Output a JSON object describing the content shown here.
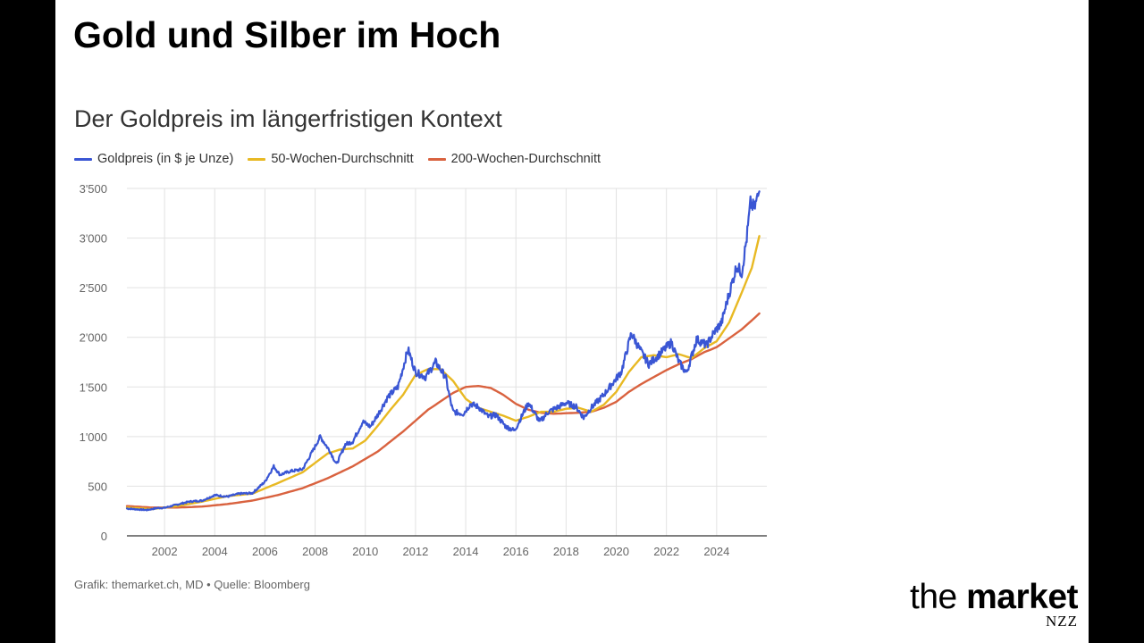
{
  "headline": "Gold und Silber im Hoch",
  "footer": {
    "source": "Grafik: themarket.ch, MD • Quelle: Bloomberg",
    "logo_word1": "the",
    "logo_word2": "market",
    "logo_sub": "NZZ"
  },
  "colors": {
    "gold_price": "#3a56d4",
    "ma50": "#e8b923",
    "ma200": "#d9623f",
    "grid": "#e2e2e2",
    "axis": "#333333"
  },
  "chart_data": {
    "type": "line",
    "title": "Der Goldpreis im längerfristigen Kontext",
    "xlabel": "",
    "ylabel": "",
    "xlim": [
      2000.5,
      2026.0
    ],
    "ylim": [
      0,
      3500
    ],
    "x_ticks": [
      2002,
      2004,
      2006,
      2008,
      2010,
      2012,
      2014,
      2016,
      2018,
      2020,
      2022,
      2024
    ],
    "x_tick_labels": [
      "2002",
      "2004",
      "2006",
      "2008",
      "2010",
      "2012",
      "2014",
      "2016",
      "2018",
      "2020",
      "2022",
      "2024"
    ],
    "y_ticks": [
      0,
      500,
      1000,
      1500,
      2000,
      2500,
      3000,
      3500
    ],
    "y_tick_labels": [
      "0",
      "500",
      "1'000",
      "1'500",
      "2'000",
      "2'500",
      "3'000",
      "3'500"
    ],
    "grid": true,
    "legend": "top-left",
    "series": [
      {
        "name": "Goldpreis (in $ je Unze)",
        "color": "#3a56d4",
        "points": [
          [
            2000.5,
            275
          ],
          [
            2001.0,
            265
          ],
          [
            2001.3,
            260
          ],
          [
            2001.7,
            280
          ],
          [
            2002.0,
            282
          ],
          [
            2002.5,
            315
          ],
          [
            2003.0,
            345
          ],
          [
            2003.5,
            355
          ],
          [
            2004.0,
            410
          ],
          [
            2004.5,
            395
          ],
          [
            2005.0,
            425
          ],
          [
            2005.5,
            430
          ],
          [
            2006.0,
            545
          ],
          [
            2006.35,
            700
          ],
          [
            2006.6,
            615
          ],
          [
            2007.0,
            650
          ],
          [
            2007.5,
            670
          ],
          [
            2008.0,
            900
          ],
          [
            2008.2,
            1000
          ],
          [
            2008.6,
            850
          ],
          [
            2008.85,
            720
          ],
          [
            2009.2,
            920
          ],
          [
            2009.5,
            950
          ],
          [
            2009.9,
            1150
          ],
          [
            2010.2,
            1100
          ],
          [
            2010.5,
            1220
          ],
          [
            2010.9,
            1400
          ],
          [
            2011.3,
            1500
          ],
          [
            2011.7,
            1880
          ],
          [
            2012.0,
            1650
          ],
          [
            2012.4,
            1600
          ],
          [
            2012.8,
            1750
          ],
          [
            2013.2,
            1600
          ],
          [
            2013.4,
            1350
          ],
          [
            2013.5,
            1250
          ],
          [
            2013.9,
            1230
          ],
          [
            2014.2,
            1330
          ],
          [
            2014.5,
            1300
          ],
          [
            2014.9,
            1200
          ],
          [
            2015.2,
            1220
          ],
          [
            2015.6,
            1100
          ],
          [
            2015.95,
            1060
          ],
          [
            2016.5,
            1340
          ],
          [
            2016.95,
            1150
          ],
          [
            2017.3,
            1250
          ],
          [
            2017.7,
            1300
          ],
          [
            2018.0,
            1340
          ],
          [
            2018.4,
            1300
          ],
          [
            2018.7,
            1190
          ],
          [
            2019.0,
            1290
          ],
          [
            2019.5,
            1420
          ],
          [
            2020.2,
            1650
          ],
          [
            2020.6,
            2040
          ],
          [
            2021.0,
            1850
          ],
          [
            2021.3,
            1730
          ],
          [
            2021.6,
            1800
          ],
          [
            2022.2,
            1950
          ],
          [
            2022.5,
            1750
          ],
          [
            2022.8,
            1640
          ],
          [
            2023.2,
            1980
          ],
          [
            2023.6,
            1920
          ],
          [
            2023.9,
            2050
          ],
          [
            2024.2,
            2150
          ],
          [
            2024.4,
            2350
          ],
          [
            2024.8,
            2720
          ],
          [
            2025.0,
            2650
          ],
          [
            2025.2,
            3000
          ],
          [
            2025.35,
            3350
          ],
          [
            2025.5,
            3300
          ],
          [
            2025.7,
            3470
          ]
        ]
      },
      {
        "name": "50-Wochen-Durchschnitt",
        "color": "#e8b923",
        "points": [
          [
            2000.5,
            285
          ],
          [
            2001.5,
            270
          ],
          [
            2002.5,
            300
          ],
          [
            2003.5,
            345
          ],
          [
            2004.5,
            400
          ],
          [
            2005.5,
            425
          ],
          [
            2006.5,
            530
          ],
          [
            2007.5,
            640
          ],
          [
            2008.5,
            830
          ],
          [
            2009.0,
            870
          ],
          [
            2009.5,
            880
          ],
          [
            2010.0,
            960
          ],
          [
            2010.5,
            1110
          ],
          [
            2011.0,
            1270
          ],
          [
            2011.5,
            1420
          ],
          [
            2012.0,
            1620
          ],
          [
            2012.5,
            1680
          ],
          [
            2013.0,
            1680
          ],
          [
            2013.5,
            1560
          ],
          [
            2014.0,
            1380
          ],
          [
            2014.5,
            1290
          ],
          [
            2015.0,
            1250
          ],
          [
            2015.5,
            1210
          ],
          [
            2016.0,
            1160
          ],
          [
            2016.5,
            1200
          ],
          [
            2017.0,
            1250
          ],
          [
            2017.5,
            1250
          ],
          [
            2018.0,
            1280
          ],
          [
            2018.5,
            1290
          ],
          [
            2019.0,
            1250
          ],
          [
            2019.5,
            1320
          ],
          [
            2020.0,
            1450
          ],
          [
            2020.5,
            1650
          ],
          [
            2021.0,
            1800
          ],
          [
            2021.5,
            1820
          ],
          [
            2022.0,
            1800
          ],
          [
            2022.5,
            1830
          ],
          [
            2023.0,
            1790
          ],
          [
            2023.5,
            1890
          ],
          [
            2024.0,
            1960
          ],
          [
            2024.5,
            2150
          ],
          [
            2025.0,
            2450
          ],
          [
            2025.4,
            2700
          ],
          [
            2025.7,
            3020
          ]
        ]
      },
      {
        "name": "200-Wochen-Durchschnitt",
        "color": "#d9623f",
        "points": [
          [
            2000.5,
            300
          ],
          [
            2001.5,
            285
          ],
          [
            2002.5,
            285
          ],
          [
            2003.5,
            295
          ],
          [
            2004.5,
            320
          ],
          [
            2005.5,
            355
          ],
          [
            2006.5,
            410
          ],
          [
            2007.5,
            480
          ],
          [
            2008.5,
            580
          ],
          [
            2009.5,
            700
          ],
          [
            2010.5,
            850
          ],
          [
            2011.5,
            1050
          ],
          [
            2012.5,
            1270
          ],
          [
            2013.5,
            1440
          ],
          [
            2014.0,
            1500
          ],
          [
            2014.5,
            1510
          ],
          [
            2015.0,
            1490
          ],
          [
            2015.5,
            1420
          ],
          [
            2016.0,
            1330
          ],
          [
            2016.5,
            1270
          ],
          [
            2017.0,
            1240
          ],
          [
            2017.5,
            1230
          ],
          [
            2018.0,
            1235
          ],
          [
            2018.5,
            1240
          ],
          [
            2019.0,
            1250
          ],
          [
            2019.5,
            1290
          ],
          [
            2020.0,
            1350
          ],
          [
            2020.5,
            1450
          ],
          [
            2021.0,
            1530
          ],
          [
            2021.5,
            1600
          ],
          [
            2022.0,
            1670
          ],
          [
            2022.5,
            1730
          ],
          [
            2023.0,
            1780
          ],
          [
            2023.5,
            1850
          ],
          [
            2024.0,
            1900
          ],
          [
            2024.5,
            1990
          ],
          [
            2025.0,
            2080
          ],
          [
            2025.4,
            2170
          ],
          [
            2025.7,
            2240
          ]
        ]
      }
    ]
  }
}
